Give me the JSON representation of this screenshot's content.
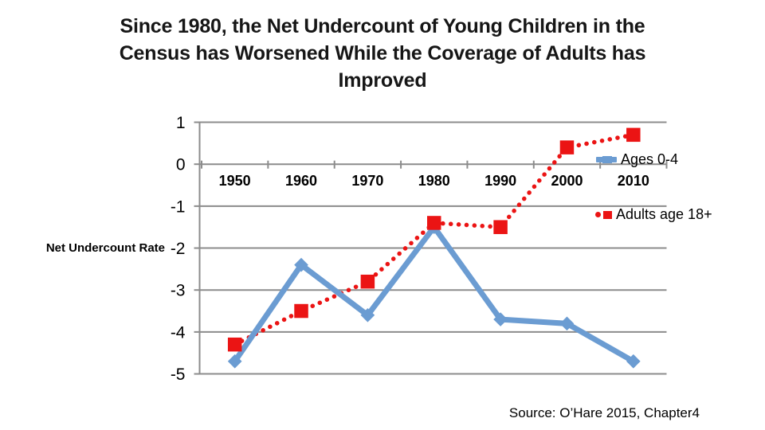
{
  "title": {
    "lines": [
      "Since 1980, the Net Undercount of Young Children in the",
      "Census has Worsened While the Coverage of Adults has",
      "Improved"
    ]
  },
  "chart_data": {
    "type": "line",
    "categories": [
      "1950",
      "1960",
      "1970",
      "1980",
      "1990",
      "2000",
      "2010"
    ],
    "series": [
      {
        "name": "Ages 0-4",
        "color": "#6b9cd2",
        "marker": "diamond",
        "line_style": "solid",
        "values": [
          -4.7,
          -2.4,
          -3.6,
          -1.5,
          -3.7,
          -3.8,
          -4.7
        ]
      },
      {
        "name": "Adults age 18+",
        "color": "#eb1414",
        "marker": "square",
        "line_style": "dotted",
        "values": [
          -4.3,
          -3.5,
          -2.8,
          -1.4,
          -1.5,
          0.4,
          0.7
        ]
      }
    ],
    "title": "",
    "xlabel": "",
    "ylabel": "Net Undercount Rate",
    "yticks": [
      1,
      0,
      -1,
      -2,
      -3,
      -4,
      -5
    ],
    "ylim": [
      -5,
      1
    ],
    "grid": true,
    "gridline_color": "#8c8c8c",
    "legend_position": "right"
  },
  "source": "Source: O’Hare 2015, Chapter4"
}
